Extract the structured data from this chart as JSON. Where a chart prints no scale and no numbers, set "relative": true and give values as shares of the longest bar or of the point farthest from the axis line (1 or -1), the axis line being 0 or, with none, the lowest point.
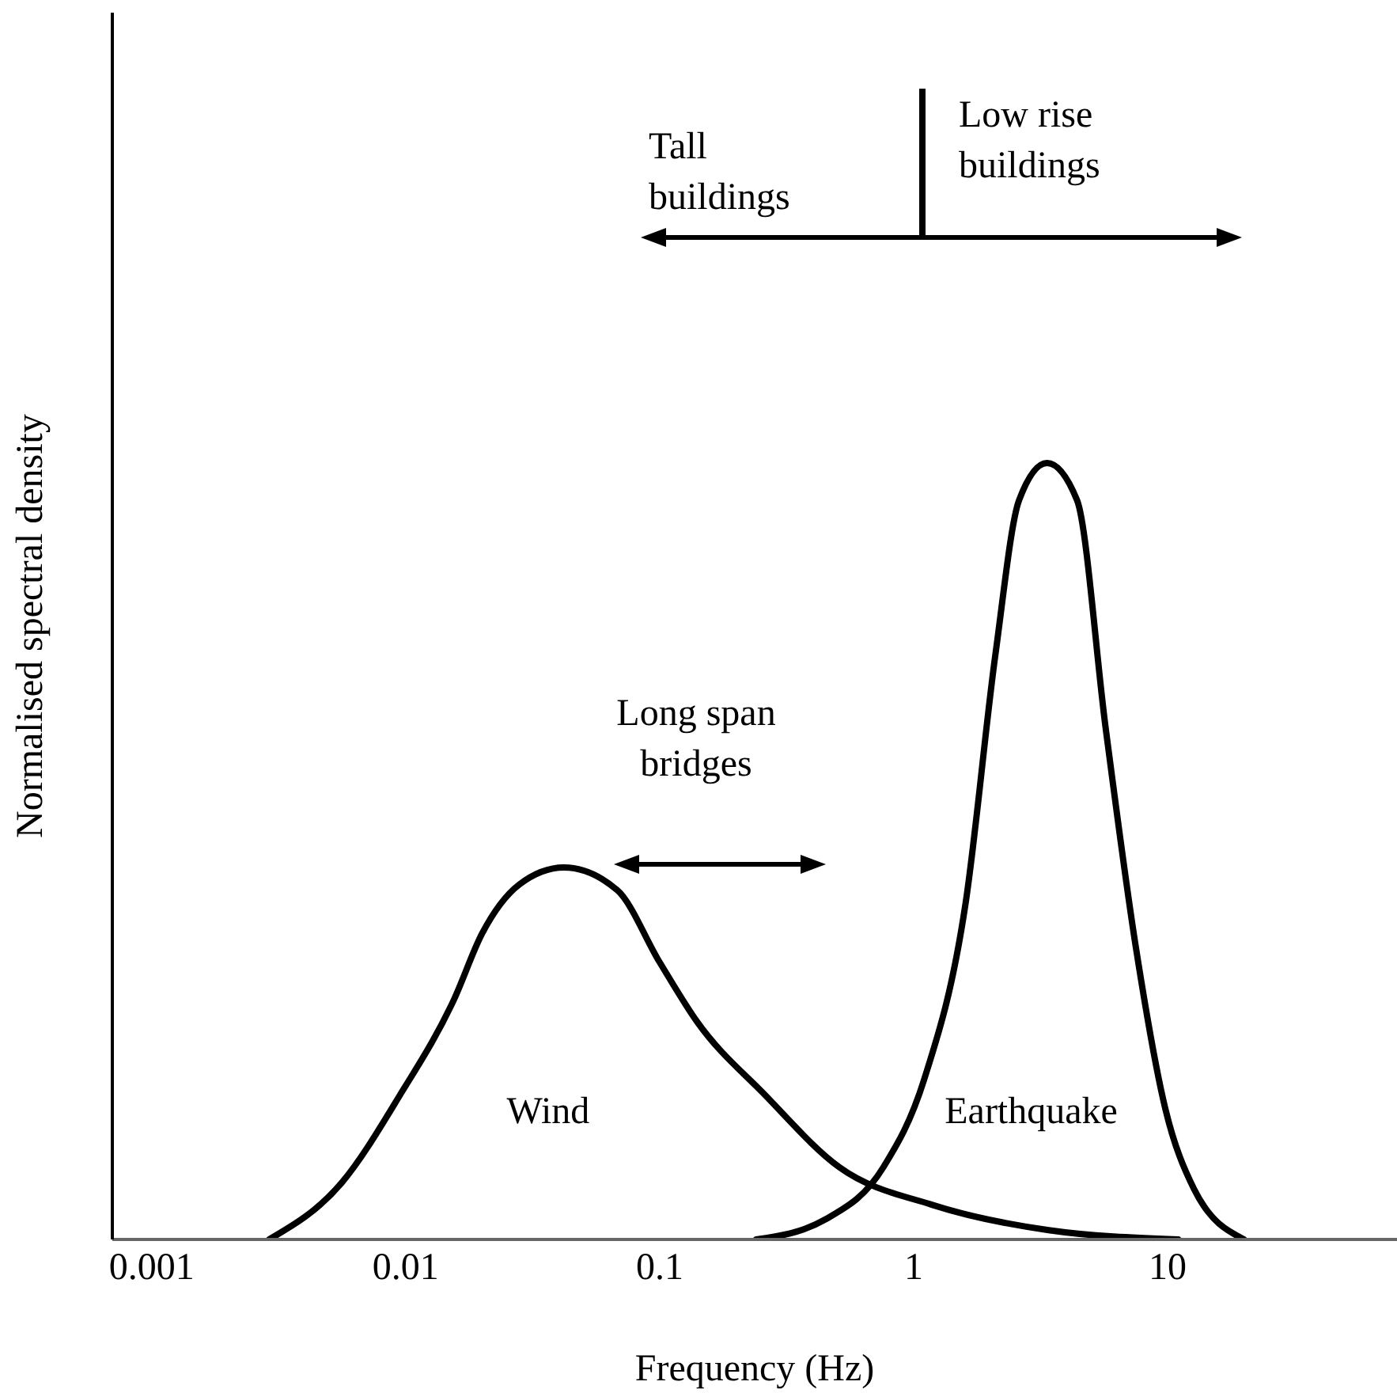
{
  "chart_data": {
    "type": "line",
    "xlabel": "Frequency (Hz)",
    "ylabel": "Normalised spectral density",
    "relative": true,
    "log": "x",
    "xlim": [
      0.0007,
      80
    ],
    "xticks": [
      0.001,
      0.01,
      0.1,
      1,
      10
    ],
    "series": [
      {
        "name": "Wind",
        "color": "#000000",
        "x": [
          0.0029,
          0.0056,
          0.0095,
          0.0155,
          0.02,
          0.028,
          0.042,
          0.068,
          0.1,
          0.14,
          0.26,
          0.51,
          1.2,
          3.4,
          11
        ],
        "values": [
          0,
          0.073,
          0.186,
          0.309,
          0.394,
          0.457,
          0.479,
          0.45,
          0.357,
          0.281,
          0.186,
          0.093,
          0.044,
          0.012,
          0
        ]
      },
      {
        "name": "Earthquake",
        "color": "#000000",
        "x": [
          0.24,
          0.45,
          0.76,
          1.1,
          1.6,
          2.1,
          2.6,
          3.35,
          4.4,
          5.7,
          7.5,
          9.8,
          12.7,
          20
        ],
        "values": [
          0,
          0.026,
          0.093,
          0.206,
          0.432,
          0.754,
          0.952,
          1,
          0.952,
          0.659,
          0.376,
          0.168,
          0.065,
          0
        ]
      }
    ],
    "annotations": [
      "Tall buildings",
      "Low rise buildings",
      "Long span bridges"
    ]
  }
}
